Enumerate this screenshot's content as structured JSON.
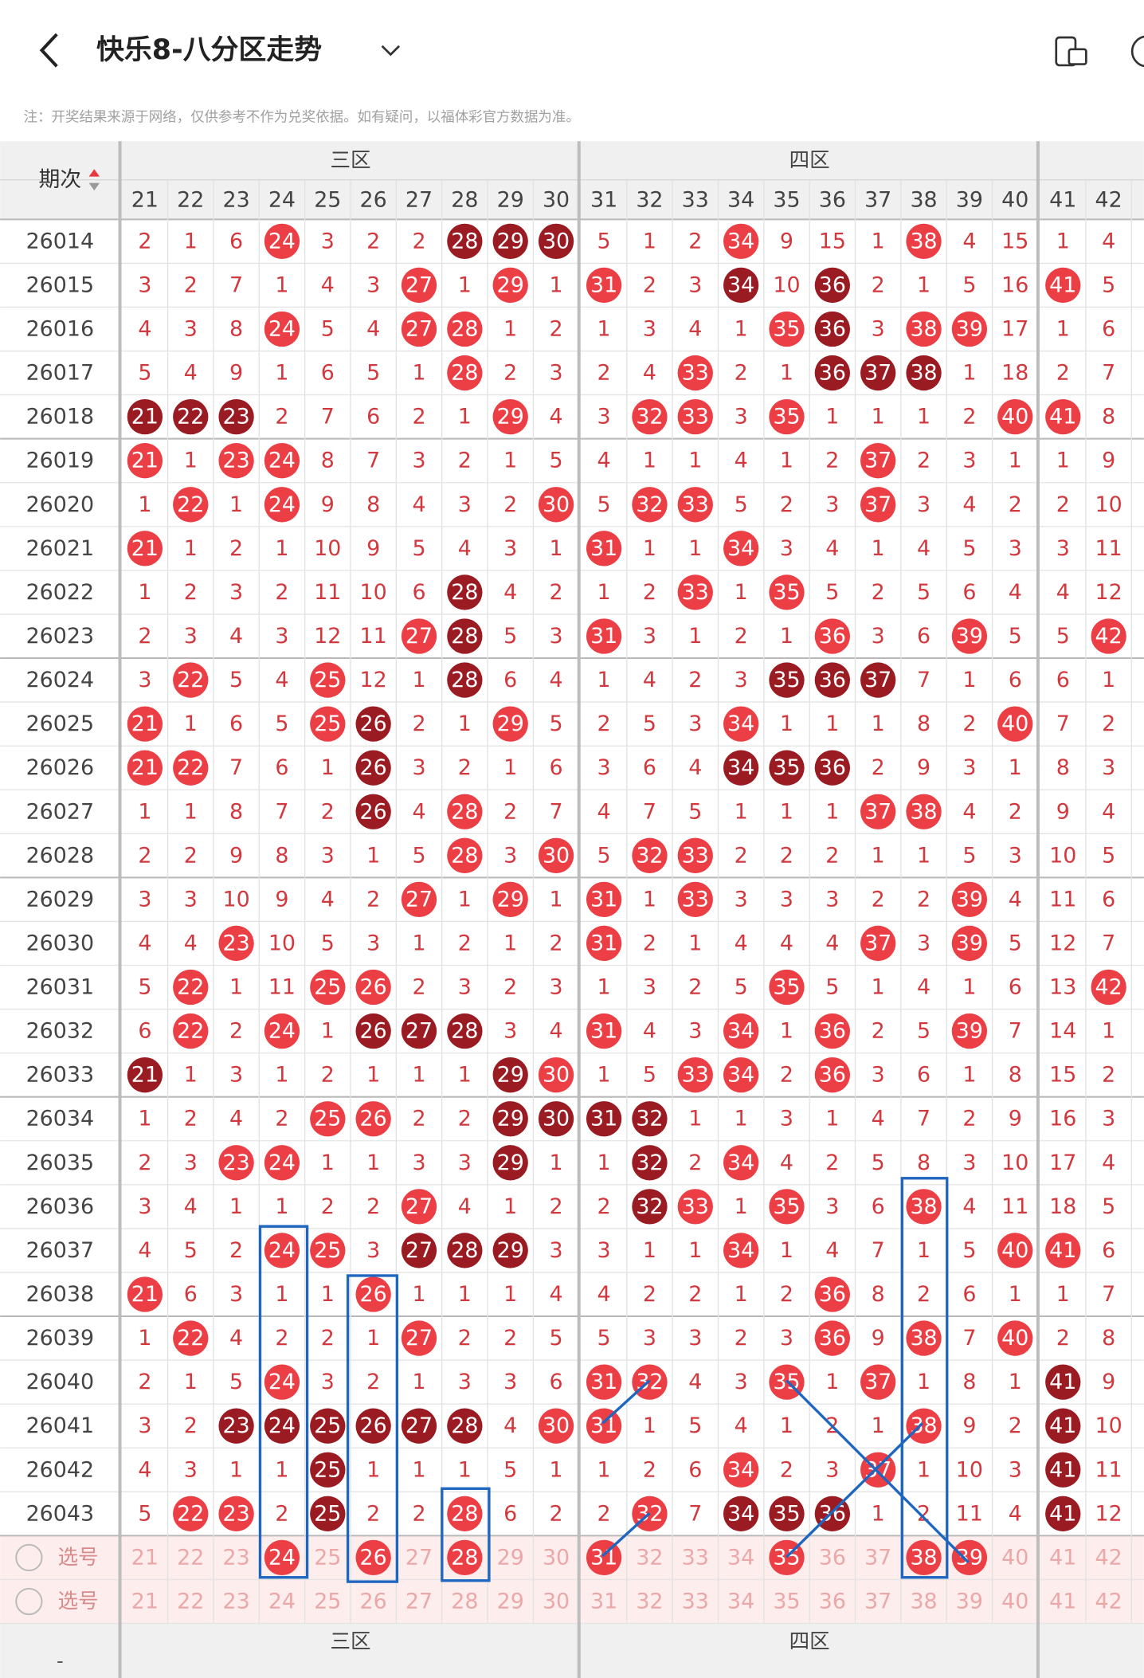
{
  "header": {
    "title": "快乐8-八分区走势",
    "note": "注：开奖结果来源于网络，仅供参考不作为兑奖依据。如有疑问，以福体彩官方数据为准。"
  },
  "table": {
    "issue_label": "期次",
    "zones": [
      "三区",
      "四区"
    ],
    "columns": [
      21,
      22,
      23,
      24,
      25,
      26,
      27,
      28,
      29,
      30,
      31,
      32,
      33,
      34,
      35,
      36,
      37,
      38,
      39,
      40,
      41,
      42
    ],
    "rows": [
      {
        "issue": "26014",
        "values": [
          2,
          1,
          6,
          24,
          3,
          2,
          2,
          28,
          29,
          30,
          5,
          1,
          2,
          34,
          9,
          15,
          1,
          38,
          4,
          15,
          1,
          4
        ],
        "dark": [
          28,
          29,
          30
        ]
      },
      {
        "issue": "26015",
        "values": [
          3,
          2,
          7,
          1,
          4,
          3,
          27,
          1,
          29,
          1,
          31,
          2,
          3,
          34,
          10,
          36,
          2,
          1,
          5,
          16,
          41,
          5
        ],
        "dark": [
          34,
          36
        ]
      },
      {
        "issue": "26016",
        "values": [
          4,
          3,
          8,
          24,
          5,
          4,
          27,
          28,
          1,
          2,
          1,
          3,
          4,
          1,
          35,
          36,
          3,
          38,
          39,
          17,
          1,
          6
        ],
        "dark": [
          36
        ]
      },
      {
        "issue": "26017",
        "values": [
          5,
          4,
          9,
          1,
          6,
          5,
          1,
          28,
          2,
          3,
          2,
          4,
          33,
          2,
          1,
          36,
          37,
          38,
          1,
          18,
          2,
          7
        ],
        "dark": [
          36,
          37,
          38
        ]
      },
      {
        "issue": "26018",
        "values": [
          21,
          22,
          23,
          2,
          7,
          6,
          2,
          1,
          29,
          4,
          3,
          32,
          33,
          3,
          35,
          1,
          1,
          1,
          2,
          40,
          41,
          8
        ],
        "dark": [
          21,
          22,
          23
        ]
      },
      {
        "issue": "26019",
        "values": [
          21,
          1,
          23,
          24,
          8,
          7,
          3,
          2,
          1,
          5,
          4,
          1,
          1,
          4,
          1,
          2,
          37,
          2,
          3,
          1,
          1,
          9
        ]
      },
      {
        "issue": "26020",
        "values": [
          1,
          22,
          1,
          24,
          9,
          8,
          4,
          3,
          2,
          30,
          5,
          32,
          33,
          5,
          2,
          3,
          37,
          3,
          4,
          2,
          2,
          10
        ]
      },
      {
        "issue": "26021",
        "values": [
          21,
          1,
          2,
          1,
          10,
          9,
          5,
          4,
          3,
          1,
          31,
          1,
          1,
          34,
          3,
          4,
          1,
          4,
          5,
          3,
          3,
          11
        ]
      },
      {
        "issue": "26022",
        "values": [
          1,
          2,
          3,
          2,
          11,
          10,
          6,
          28,
          4,
          2,
          1,
          2,
          33,
          1,
          35,
          5,
          2,
          5,
          6,
          4,
          4,
          12
        ],
        "dark": [
          28
        ]
      },
      {
        "issue": "26023",
        "values": [
          2,
          3,
          4,
          3,
          12,
          11,
          27,
          28,
          5,
          3,
          31,
          3,
          1,
          2,
          1,
          36,
          3,
          6,
          39,
          5,
          5,
          42
        ],
        "dark": [
          28
        ]
      },
      {
        "issue": "26024",
        "values": [
          3,
          22,
          5,
          4,
          25,
          12,
          1,
          28,
          6,
          4,
          1,
          4,
          2,
          3,
          35,
          36,
          37,
          7,
          1,
          6,
          6,
          1
        ],
        "dark": [
          28,
          35,
          36,
          37
        ]
      },
      {
        "issue": "26025",
        "values": [
          21,
          1,
          6,
          5,
          25,
          26,
          2,
          1,
          29,
          5,
          2,
          5,
          3,
          34,
          1,
          1,
          1,
          8,
          2,
          40,
          7,
          2
        ],
        "dark": [
          26
        ]
      },
      {
        "issue": "26026",
        "values": [
          21,
          22,
          7,
          6,
          1,
          26,
          3,
          2,
          1,
          6,
          3,
          6,
          4,
          34,
          35,
          36,
          2,
          9,
          3,
          1,
          8,
          3
        ],
        "dark": [
          26,
          34,
          35,
          36
        ]
      },
      {
        "issue": "26027",
        "values": [
          1,
          1,
          8,
          7,
          2,
          26,
          4,
          28,
          2,
          7,
          4,
          7,
          5,
          1,
          1,
          1,
          37,
          38,
          4,
          2,
          9,
          4
        ],
        "dark": [
          26
        ]
      },
      {
        "issue": "26028",
        "values": [
          2,
          2,
          9,
          8,
          3,
          1,
          5,
          28,
          3,
          30,
          5,
          32,
          33,
          2,
          2,
          2,
          1,
          1,
          5,
          3,
          10,
          5
        ]
      },
      {
        "issue": "26029",
        "values": [
          3,
          3,
          10,
          9,
          4,
          2,
          27,
          1,
          29,
          1,
          31,
          1,
          33,
          3,
          3,
          3,
          2,
          2,
          39,
          4,
          11,
          6
        ]
      },
      {
        "issue": "26030",
        "values": [
          4,
          4,
          23,
          10,
          5,
          3,
          1,
          2,
          1,
          2,
          31,
          2,
          1,
          4,
          4,
          4,
          37,
          3,
          39,
          5,
          12,
          7
        ]
      },
      {
        "issue": "26031",
        "values": [
          5,
          22,
          1,
          11,
          25,
          26,
          2,
          3,
          2,
          3,
          1,
          3,
          2,
          5,
          35,
          5,
          1,
          4,
          1,
          6,
          13,
          42
        ]
      },
      {
        "issue": "26032",
        "values": [
          6,
          22,
          2,
          24,
          1,
          26,
          27,
          28,
          3,
          4,
          31,
          4,
          3,
          34,
          1,
          36,
          2,
          5,
          39,
          7,
          14,
          1
        ],
        "dark": [
          26,
          27,
          28
        ]
      },
      {
        "issue": "26033",
        "values": [
          21,
          1,
          3,
          1,
          2,
          1,
          1,
          1,
          29,
          30,
          1,
          5,
          33,
          34,
          2,
          36,
          3,
          6,
          1,
          8,
          15,
          2
        ],
        "dark": [
          21,
          29
        ]
      },
      {
        "issue": "26034",
        "values": [
          1,
          2,
          4,
          2,
          25,
          26,
          2,
          2,
          29,
          30,
          31,
          32,
          1,
          1,
          3,
          1,
          4,
          7,
          2,
          9,
          16,
          3
        ],
        "dark": [
          29,
          30,
          31,
          32
        ]
      },
      {
        "issue": "26035",
        "values": [
          2,
          3,
          23,
          24,
          1,
          1,
          3,
          3,
          29,
          1,
          1,
          32,
          2,
          34,
          4,
          2,
          5,
          8,
          3,
          10,
          17,
          4
        ],
        "dark": [
          29,
          32
        ]
      },
      {
        "issue": "26036",
        "values": [
          3,
          4,
          1,
          1,
          2,
          2,
          27,
          4,
          1,
          2,
          2,
          32,
          33,
          1,
          35,
          3,
          6,
          38,
          4,
          11,
          18,
          5
        ],
        "dark": [
          32
        ]
      },
      {
        "issue": "26037",
        "values": [
          4,
          5,
          2,
          24,
          25,
          3,
          27,
          28,
          29,
          3,
          3,
          1,
          1,
          34,
          1,
          4,
          7,
          1,
          5,
          40,
          41,
          6
        ],
        "dark": [
          27,
          28,
          29
        ]
      },
      {
        "issue": "26038",
        "values": [
          21,
          6,
          3,
          1,
          1,
          26,
          1,
          1,
          1,
          4,
          4,
          2,
          2,
          1,
          2,
          36,
          8,
          2,
          6,
          1,
          1,
          7
        ]
      },
      {
        "issue": "26039",
        "values": [
          1,
          22,
          4,
          2,
          2,
          1,
          27,
          2,
          2,
          5,
          5,
          3,
          3,
          2,
          3,
          36,
          9,
          38,
          7,
          40,
          2,
          8
        ]
      },
      {
        "issue": "26040",
        "values": [
          2,
          1,
          5,
          24,
          3,
          2,
          1,
          3,
          3,
          6,
          31,
          32,
          4,
          3,
          35,
          1,
          37,
          1,
          8,
          1,
          41,
          9
        ],
        "dark": [
          41
        ]
      },
      {
        "issue": "26041",
        "values": [
          3,
          2,
          23,
          24,
          25,
          26,
          27,
          28,
          4,
          30,
          31,
          1,
          5,
          4,
          1,
          2,
          1,
          38,
          9,
          2,
          41,
          10
        ],
        "dark": [
          23,
          24,
          25,
          26,
          27,
          28,
          41
        ]
      },
      {
        "issue": "26042",
        "values": [
          4,
          3,
          1,
          1,
          25,
          1,
          1,
          1,
          5,
          1,
          1,
          2,
          6,
          34,
          2,
          3,
          37,
          1,
          10,
          3,
          41,
          11
        ],
        "dark": [
          25,
          41
        ]
      },
      {
        "issue": "26043",
        "values": [
          5,
          22,
          23,
          2,
          25,
          2,
          2,
          28,
          6,
          2,
          2,
          32,
          7,
          34,
          35,
          36,
          1,
          2,
          11,
          4,
          41,
          12
        ],
        "dark": [
          25,
          34,
          35,
          36,
          41
        ]
      }
    ],
    "pick_rows": [
      {
        "label": "选号",
        "selected": [
          24,
          26,
          28,
          31,
          35,
          38,
          39
        ]
      },
      {
        "label": "选号"
      }
    ],
    "footer_issue": "-"
  }
}
